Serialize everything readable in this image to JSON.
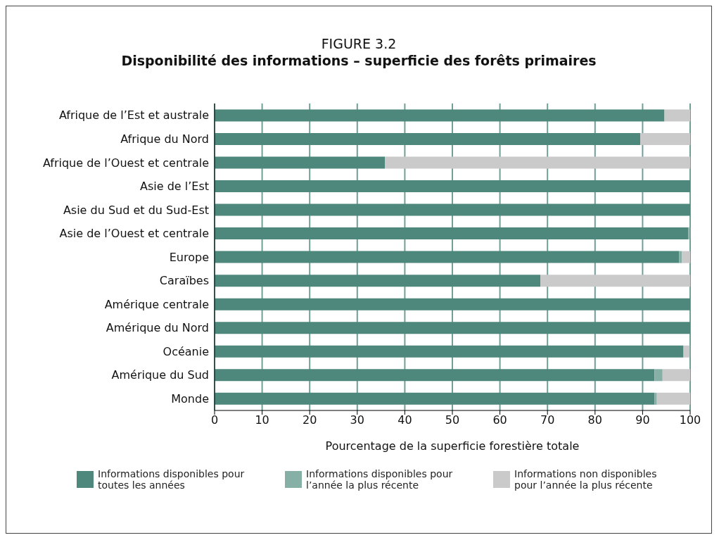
{
  "chart_data": {
    "type": "bar",
    "orientation": "horizontal",
    "stacked": true,
    "title": "FIGURE 3.2",
    "subtitle": "Disponibilité des informations – superficie des forêts primaires",
    "xlabel": "Pourcentage de la superficie forestière totale",
    "categories": [
      "Afrique de l’Est et australe",
      "Afrique du Nord",
      "Afrique de l’Ouest et centrale",
      "Asie de l’Est",
      "Asie du Sud et du Sud-Est",
      "Asie de l’Ouest et centrale",
      "Europe",
      "Caraïbes",
      "Amérique centrale",
      "Amérique du Nord",
      "Océanie",
      "Amérique du Sud",
      "Monde"
    ],
    "series": [
      {
        "name": "Informations disponibles pour toutes les années",
        "color": "#4e887d",
        "values": [
          94.6,
          89.5,
          35.8,
          100,
          100,
          99.6,
          97.7,
          68.5,
          100,
          100,
          98.6,
          92.5,
          92.5
        ]
      },
      {
        "name": "Informations disponibles pour l’année la plus récente",
        "color": "#86b0a6",
        "values": [
          0,
          0,
          0,
          0,
          0,
          0.4,
          0.6,
          0,
          0,
          0,
          null,
          1.7,
          0.5
        ]
      },
      {
        "name": "Informations non disponibles pour l’année la plus récente",
        "color": "#cacaca",
        "values": [
          5.4,
          10.5,
          64.2,
          0,
          0,
          0,
          1.7,
          31.5,
          0,
          0,
          1.3,
          5.8,
          7.0
        ]
      }
    ],
    "xlim": [
      0,
      100
    ],
    "xticks": [
      0,
      10,
      20,
      30,
      40,
      50,
      60,
      70,
      80,
      90,
      100
    ],
    "grid": "x",
    "legend": "bottom"
  }
}
